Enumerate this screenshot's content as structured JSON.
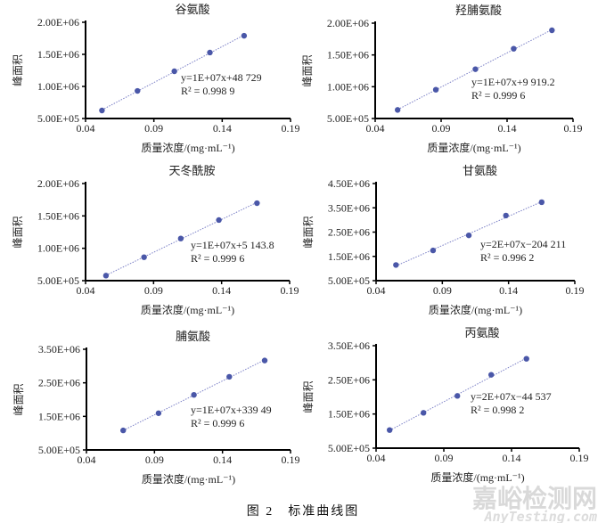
{
  "figure_caption": "图 2　标准曲线图",
  "watermark": {
    "line1": "嘉峪检测网",
    "line2": "AnyTesting.com"
  },
  "colors": {
    "marker": "#4a57a8",
    "trendline": "#7a7fc6",
    "axis": "#000000"
  },
  "chart_data": [
    {
      "type": "scatter",
      "title": "谷氨酸",
      "xlabel": "质量浓度/(mg·mL⁻¹)",
      "ylabel": "峰面积",
      "xlim": [
        0.04,
        0.19
      ],
      "xticks": [
        "0.04",
        "0.09",
        "0.14",
        "0.19"
      ],
      "ylim": [
        500000,
        2000000
      ],
      "yticks": [
        "5.00E+05",
        "1.00E+06",
        "1.50E+06",
        "2.00E+06"
      ],
      "x": [
        0.052,
        0.078,
        0.105,
        0.131,
        0.156
      ],
      "y": [
        625000,
        930000,
        1236000,
        1528000,
        1790000
      ],
      "trendline": true,
      "equation": "y=1E+07x+48 729",
      "r2": "R² = 0.998 9",
      "grid": false
    },
    {
      "type": "scatter",
      "title": "羟脯氨酸",
      "xlabel": "质量浓度/(mg·mL⁻¹)",
      "ylabel": "峰面积",
      "xlim": [
        0.04,
        0.19
      ],
      "xticks": [
        "0.04",
        "0.09",
        "0.14",
        "0.19"
      ],
      "ylim": [
        500000,
        2000000
      ],
      "yticks": [
        "5.00E+05",
        "1.00E+06",
        "1.50E+06",
        "2.00E+06"
      ],
      "x": [
        0.057,
        0.086,
        0.116,
        0.145,
        0.174
      ],
      "y": [
        635000,
        953000,
        1276000,
        1598000,
        1888000
      ],
      "trendline": true,
      "equation": "y=1E+07x+9 919.2",
      "r2": "R² = 0.999 6",
      "grid": false
    },
    {
      "type": "scatter",
      "title": "天冬酰胺",
      "xlabel": "质量浓度/(mg·mL⁻¹)",
      "ylabel": "峰面积",
      "xlim": [
        0.04,
        0.19
      ],
      "xticks": [
        "0.04",
        "0.09",
        "0.14",
        "0.19"
      ],
      "ylim": [
        500000,
        2000000
      ],
      "yticks": [
        "5.00E+05",
        "1.00E+06",
        "1.50E+06",
        "2.00E+06"
      ],
      "x": [
        0.055,
        0.083,
        0.11,
        0.138,
        0.166
      ],
      "y": [
        578000,
        862000,
        1151000,
        1436000,
        1697000
      ],
      "trendline": true,
      "equation": "y=1E+07x+5 143.8",
      "r2": "R² = 0.999 6",
      "grid": false
    },
    {
      "type": "scatter",
      "title": "甘氨酸",
      "xlabel": "质量浓度/(mg·mL⁻¹)",
      "ylabel": "峰面积",
      "xlim": [
        0.04,
        0.19
      ],
      "xticks": [
        "0.04",
        "0.09",
        "0.14",
        "0.19"
      ],
      "ylim": [
        500000,
        4500000
      ],
      "yticks": [
        "5.00E+05",
        "1.50E+06",
        "2.50E+06",
        "3.50E+06",
        "4.50E+06"
      ],
      "x": [
        0.055,
        0.083,
        0.11,
        0.138,
        0.165
      ],
      "y": [
        1146000,
        1744000,
        2366000,
        3183000,
        3732000
      ],
      "trendline": true,
      "equation": "y=2E+07x−204 211",
      "r2": "R² = 0.996 2",
      "grid": false
    },
    {
      "type": "scatter",
      "title": "脯氨酸",
      "xlabel": "质量浓度/(mg·mL⁻¹)",
      "ylabel": "峰面积",
      "xlim": [
        0.04,
        0.19
      ],
      "xticks": [
        "0.04",
        "0.09",
        "0.14",
        "0.19"
      ],
      "ylim": [
        500000,
        3500000
      ],
      "yticks": [
        "5.00E+05",
        "1.50E+06",
        "2.50E+06",
        "3.50E+06"
      ],
      "x": [
        0.067,
        0.093,
        0.119,
        0.145,
        0.171
      ],
      "y": [
        1082000,
        1594000,
        2141000,
        2679000,
        3165000
      ],
      "trendline": true,
      "equation": "y=1E+07x+339 49",
      "r2": "R² = 0.999 6",
      "grid": false
    },
    {
      "type": "scatter",
      "title": "丙氨酸",
      "xlabel": "质量浓度/(mg·mL⁻¹)",
      "ylabel": "峰面积",
      "xlim": [
        0.04,
        0.19
      ],
      "xticks": [
        "0.04",
        "0.09",
        "0.14",
        "0.19"
      ],
      "ylim": [
        500000,
        3500000
      ],
      "yticks": [
        "5.00E+05",
        "1.50E+06",
        "2.50E+06",
        "3.50E+06"
      ],
      "x": [
        0.05,
        0.075,
        0.1,
        0.125,
        0.151
      ],
      "y": [
        1030000,
        1535000,
        2030000,
        2648000,
        3117000
      ],
      "trendline": true,
      "equation": "y=2E+07x−44 537",
      "r2": "R² = 0.998 2",
      "grid": false
    }
  ]
}
